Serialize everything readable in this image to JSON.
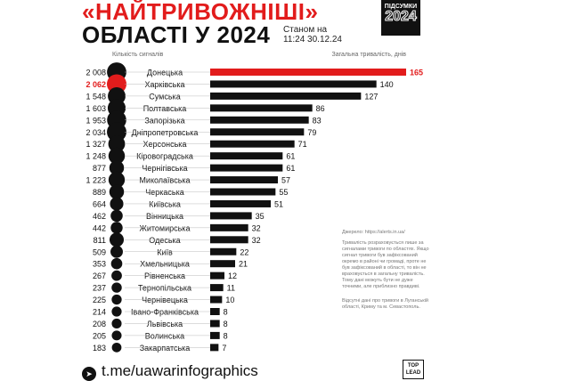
{
  "header": {
    "title_line1": "«НАЙТРИВОЖНІШІ»",
    "title_line2": "ОБЛАСТІ У 2024",
    "as_of_line1": "Станом на",
    "as_of_line2": "11:24 30.12.24",
    "badge_line1": "ПІДСУМКИ",
    "badge_line2": "2024"
  },
  "colors": {
    "accent": "#e21c1c",
    "bar": "#111111",
    "text": "#111111"
  },
  "chart_data": {
    "type": "bar",
    "orientation": "horizontal",
    "left_header": "Кількість сигналів",
    "right_header": "Загальна тривалість, днів",
    "categories": [
      "Донецька",
      "Харківська",
      "Сумська",
      "Полтавська",
      "Запорізька",
      "Дніпропетровська",
      "Херсонська",
      "Кіровоградська",
      "Чернігівська",
      "Миколаївська",
      "Черкаська",
      "Київська",
      "Вінницька",
      "Житомирська",
      "Одеська",
      "Київ",
      "Хмельницька",
      "Рівненська",
      "Тернопільська",
      "Чернівецька",
      "Івано-Франківська",
      "Львівська",
      "Волинська",
      "Закарпатська"
    ],
    "signals": [
      "2 008",
      "2 062",
      "1 548",
      "1 603",
      "1 953",
      "2 034",
      "1 327",
      "1 248",
      "877",
      "1 223",
      "889",
      "664",
      "462",
      "442",
      "811",
      "509",
      "353",
      "267",
      "237",
      "225",
      "214",
      "208",
      "205",
      "183"
    ],
    "signals_values": [
      2008,
      2062,
      1548,
      1603,
      1953,
      2034,
      1327,
      1248,
      877,
      1223,
      889,
      664,
      462,
      442,
      811,
      509,
      353,
      267,
      237,
      225,
      214,
      208,
      205,
      183
    ],
    "values": [
      165,
      140,
      127,
      86,
      83,
      79,
      71,
      61,
      61,
      57,
      55,
      51,
      35,
      32,
      32,
      22,
      21,
      12,
      11,
      10,
      8,
      8,
      8,
      7
    ],
    "highlight_duration_index": 0,
    "highlight_signals_index": 1,
    "xlim": [
      0,
      165
    ]
  },
  "notes": {
    "source": "Джерело: https://alerts.in.ua/",
    "method": "Тривалість розраховується лише за сигналами тривоги по областях. Якщо сигнал тривоги був зафіксований окремо в районі чи громаді, проте не був зафіксований в області, то він не враховується в загальну тривалість. Тому дані можуть бути не дуже точними, але приблизно правдиві.",
    "missing": "Відсутні дані про тривоги в Луганській області, Криму та м. Севастополь."
  },
  "footer": {
    "telegram_icon": "telegram-icon",
    "link": "t.me/uawarinfographics",
    "logo_line1": "TOP",
    "logo_line2": "LEAD"
  }
}
